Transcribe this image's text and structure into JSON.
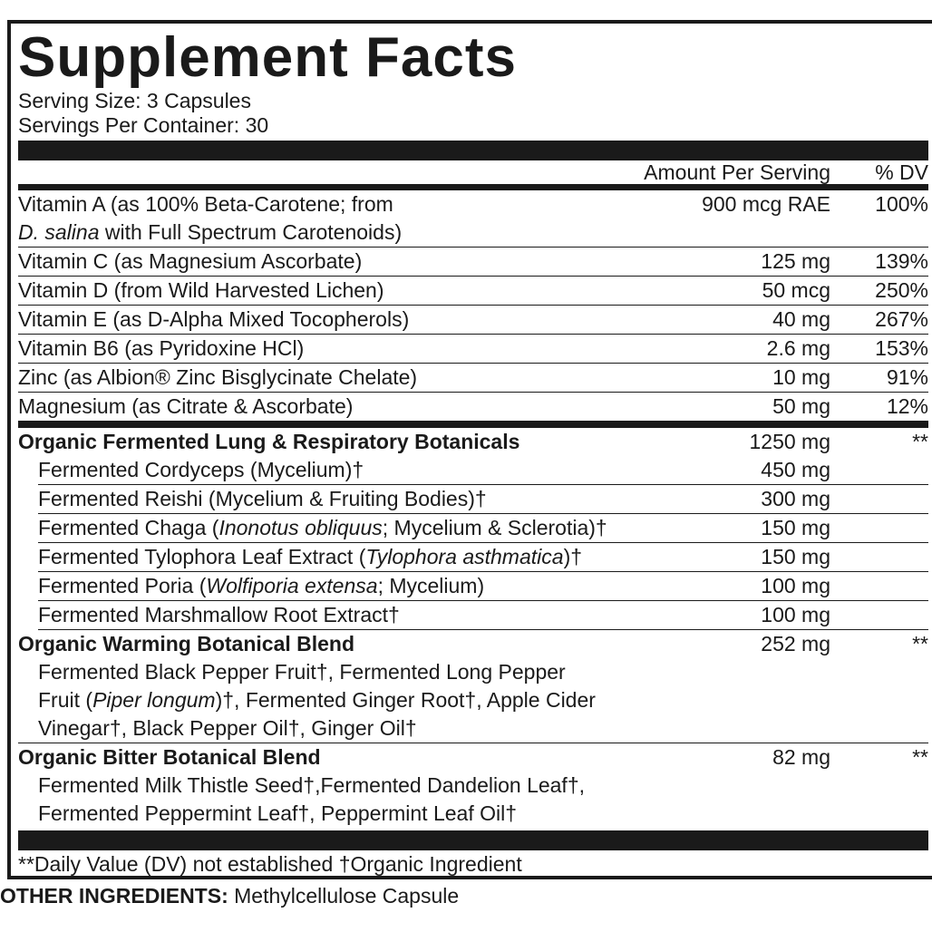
{
  "title": "Supplement Facts",
  "serving_size": "Serving Size: 3 Capsules",
  "servings_per_container": "Servings Per Container: 30",
  "header": {
    "amount": "Amount Per Serving",
    "dv": "% DV"
  },
  "vitamins": [
    {
      "name": [
        [
          "Vitamin A (as 100% Beta-Carotene; from"
        ],
        [
          {
            "text": "D. salina",
            "italic": true
          },
          " with Full Spectrum Carotenoids)"
        ]
      ],
      "amount": "900 mcg RAE",
      "dv": "100%"
    },
    {
      "name": [
        [
          "Vitamin C (as Magnesium Ascorbate)"
        ]
      ],
      "amount": "125 mg",
      "dv": "139%"
    },
    {
      "name": [
        [
          "Vitamin D (from Wild Harvested Lichen)"
        ]
      ],
      "amount": "50 mcg",
      "dv": "250%"
    },
    {
      "name": [
        [
          "Vitamin E (as D-Alpha Mixed Tocopherols)"
        ]
      ],
      "amount": "40 mg",
      "dv": "267%"
    },
    {
      "name": [
        [
          "Vitamin B6 (as Pyridoxine HCl)"
        ]
      ],
      "amount": "2.6 mg",
      "dv": "153%"
    },
    {
      "name": [
        [
          "Zinc (as Albion® Zinc Bisglycinate Chelate)"
        ]
      ],
      "amount": "10 mg",
      "dv": "91%"
    },
    {
      "name": [
        [
          "Magnesium (as Citrate & Ascorbate)"
        ]
      ],
      "amount": "50 mg",
      "dv": "12%"
    }
  ],
  "blends": [
    {
      "name": "Organic Fermented Lung & Respiratory Botanicals",
      "amount": "1250 mg",
      "dv": "**",
      "items": [
        {
          "name": [
            "Fermented Cordyceps (Mycelium)†"
          ],
          "amount": "450 mg"
        },
        {
          "name": [
            "Fermented Reishi (Mycelium & Fruiting Bodies)†"
          ],
          "amount": "300 mg"
        },
        {
          "name": [
            "Fermented Chaga (",
            {
              "text": "Inonotus obliquus",
              "italic": true
            },
            "; Mycelium & Sclerotia)†"
          ],
          "amount": "150 mg"
        },
        {
          "name": [
            "Fermented Tylophora Leaf Extract (",
            {
              "text": "Tylophora asthmatica",
              "italic": true
            },
            ")†"
          ],
          "amount": "150 mg"
        },
        {
          "name": [
            "Fermented Poria (",
            {
              "text": "Wolfiporia extensa",
              "italic": true
            },
            "; Mycelium)"
          ],
          "amount": "100 mg"
        },
        {
          "name": [
            "Fermented Marshmallow Root Extract†"
          ],
          "amount": "100 mg"
        }
      ]
    },
    {
      "name": "Organic Warming Botanical Blend",
      "amount": "252 mg",
      "dv": "**",
      "description": [
        [
          "Fermented Black Pepper Fruit†, Fermented Long Pepper"
        ],
        [
          "Fruit (",
          {
            "text": "Piper longum",
            "italic": true
          },
          ")†, Fermented Ginger Root†, Apple Cider"
        ],
        [
          "Vinegar†, Black Pepper Oil†, Ginger Oil†"
        ]
      ]
    },
    {
      "name": "Organic Bitter Botanical Blend",
      "amount": "82 mg",
      "dv": "**",
      "description": [
        [
          "Fermented Milk Thistle Seed†,Fermented Dandelion Leaf†,"
        ],
        [
          "Fermented Peppermint Leaf†, Peppermint Leaf Oil†"
        ]
      ]
    }
  ],
  "footnote": "**Daily Value (DV) not established †Organic Ingredient",
  "other_ingredients": {
    "label": "OTHER INGREDIENTS:",
    "text": "Methylcellulose Capsule"
  }
}
